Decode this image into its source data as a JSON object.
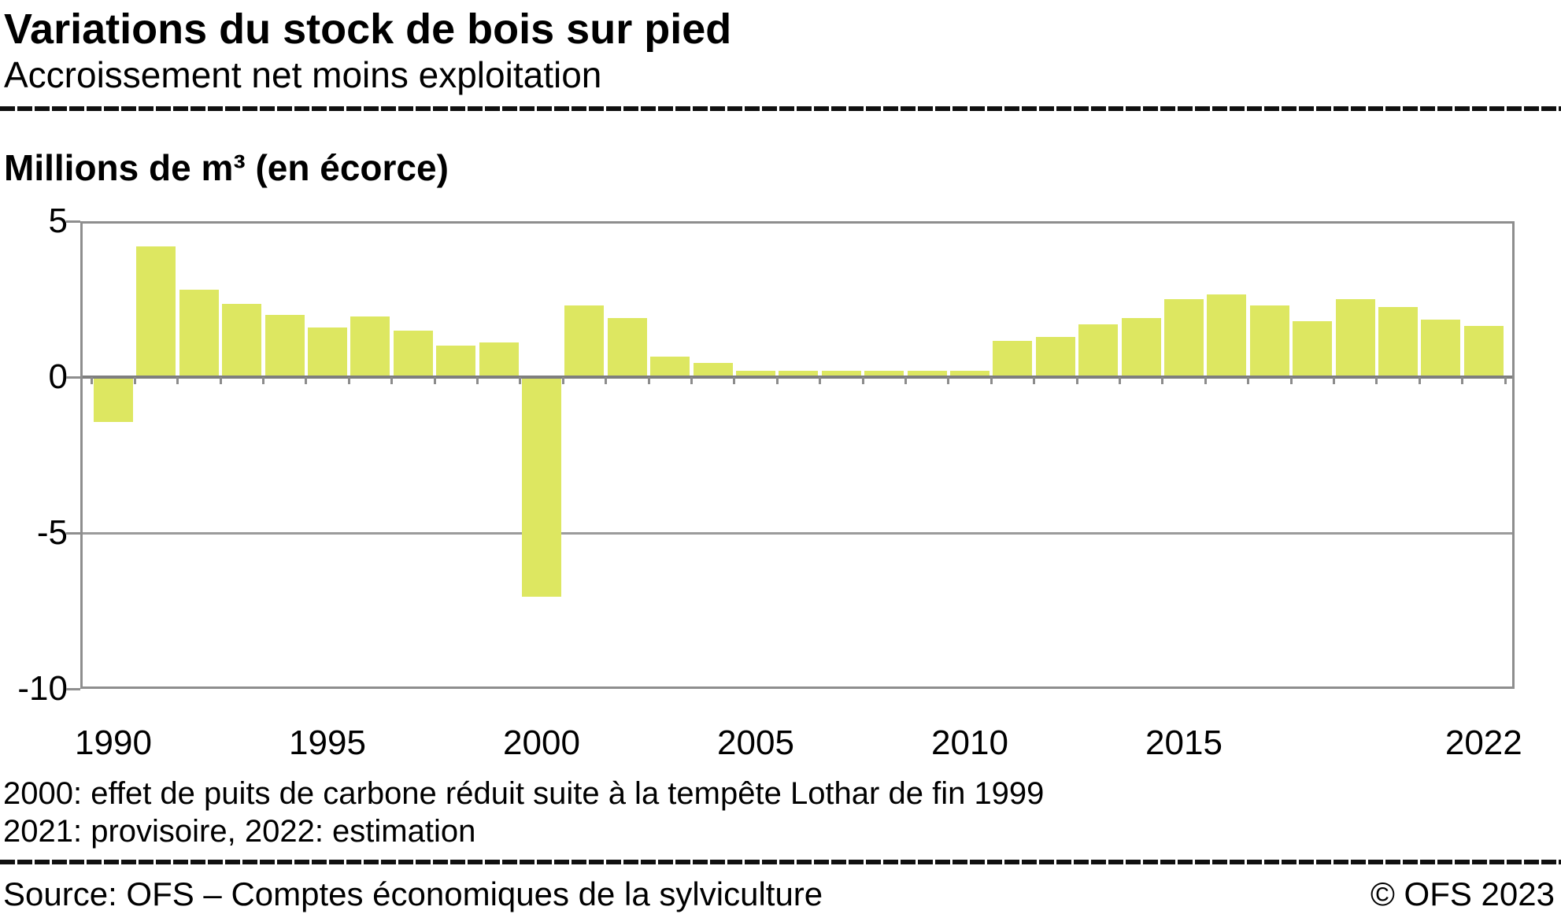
{
  "header": {
    "title": "Variations du stock de bois sur pied",
    "subtitle": "Accroissement net moins exploitation"
  },
  "chart_data": {
    "type": "bar",
    "title": "Variations du stock de bois sur pied",
    "subtitle": "Accroissement net moins exploitation",
    "unit_label": "Millions de m³ (en écorce)",
    "categories": [
      1990,
      1991,
      1992,
      1993,
      1994,
      1995,
      1996,
      1997,
      1998,
      1999,
      2000,
      2001,
      2002,
      2003,
      2004,
      2005,
      2006,
      2007,
      2008,
      2009,
      2010,
      2011,
      2012,
      2013,
      2014,
      2015,
      2016,
      2017,
      2018,
      2019,
      2020,
      2021,
      2022
    ],
    "values": [
      -1.4,
      4.2,
      2.8,
      2.35,
      2.0,
      1.6,
      1.95,
      1.5,
      1.0,
      1.1,
      -7.0,
      2.3,
      1.9,
      0.65,
      0.45,
      0.2,
      0.2,
      0.2,
      0.2,
      0.2,
      0.2,
      1.15,
      1.3,
      1.7,
      1.9,
      2.5,
      2.65,
      2.3,
      1.8,
      2.5,
      2.25,
      1.85,
      1.65
    ],
    "ylim": [
      -10,
      5
    ],
    "yticks": [
      5,
      0,
      -5,
      -10
    ],
    "ytick_labels": [
      "5",
      "0",
      "-5",
      "-10"
    ],
    "xtick_years": [
      1990,
      1995,
      2000,
      2005,
      2010,
      2015,
      2022
    ],
    "xtick_labels": [
      "1990",
      "1995",
      "2000",
      "2005",
      "2010",
      "2015",
      "2022"
    ],
    "legend": "none",
    "grid": "horizontal lines at 0 and -5, framed plot area",
    "bar_color": "#dde761",
    "grid_color": "#9b9b9b",
    "zero_line_color": "#7e7e7e",
    "frame_color": "#8e8e8e"
  },
  "footnotes": {
    "line1": "2000: effet de puits de carbone réduit suite à la tempête Lothar de fin 1999",
    "line2": "2021: provisoire, 2022: estimation"
  },
  "footer": {
    "source": "Source: OFS – Comptes économiques de la sylviculture",
    "copyright": "© OFS 2023"
  }
}
